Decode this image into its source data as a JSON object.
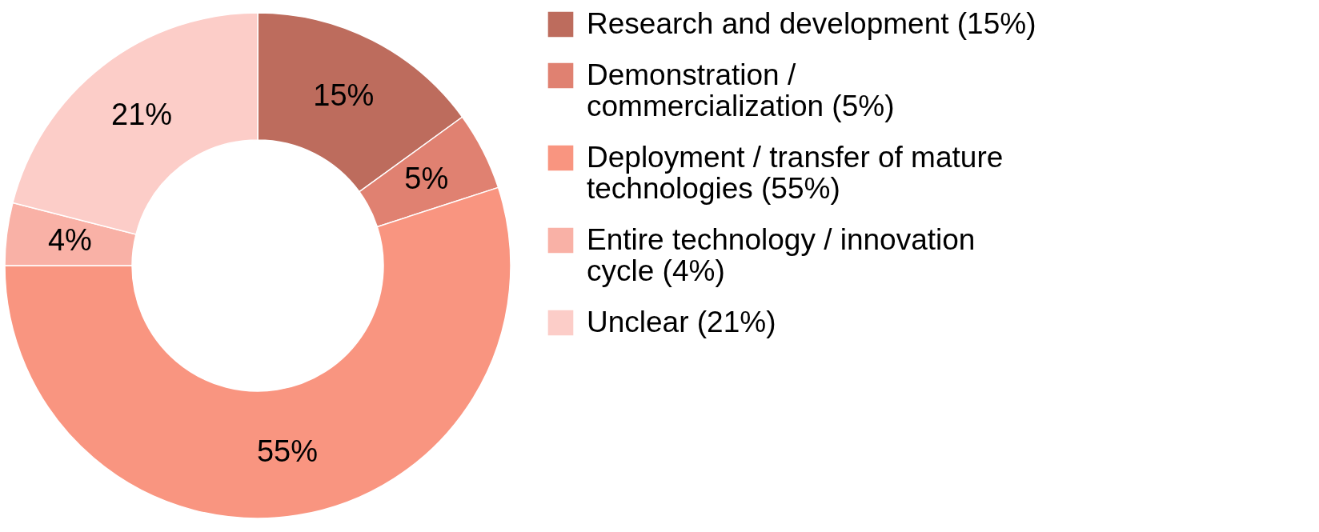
{
  "chart_data": {
    "type": "donut",
    "categories": [
      "Research and development (15%)",
      "Demonstration / commercialization (5%)",
      "Deployment / transfer of mature technologies (55%)",
      "Entire technology / innovation cycle (4%)",
      "Unclear (21%)"
    ],
    "values": [
      15,
      5,
      55,
      4,
      21
    ],
    "value_labels": [
      "15%",
      "5%",
      "55%",
      "4%",
      "21%"
    ],
    "colors": [
      "#bd6c5d",
      "#e08171",
      "#f99580",
      "#f9b1a6",
      "#fccdc8"
    ],
    "legend": "right"
  }
}
